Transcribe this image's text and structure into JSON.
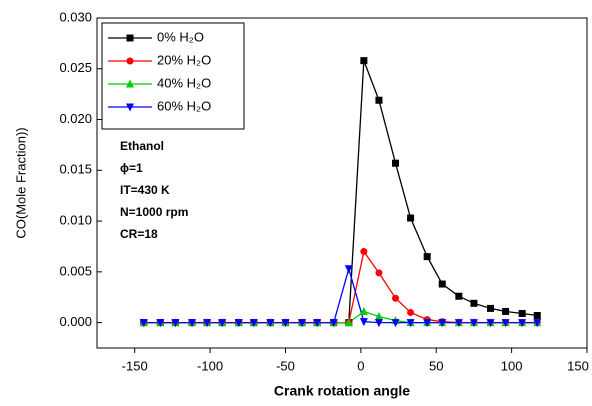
{
  "chart_data": {
    "type": "line",
    "x_label": "Crank  rotation  angle",
    "y_label": "CO(Mole Fraction))",
    "annotations": [
      "Ethanol",
      "ϕ=1",
      "IT=430 K",
      "N=1000 rpm",
      "CR=18"
    ],
    "x": [
      -144,
      -133,
      -123,
      -112,
      -102,
      -92,
      -81,
      -71,
      -60,
      -50,
      -39,
      -29,
      -18,
      -8,
      2,
      12,
      23,
      33,
      44,
      54,
      65,
      75,
      86,
      96,
      107,
      117
    ],
    "series": [
      {
        "name": "0% H₂O",
        "color": "#000000",
        "marker": "square",
        "values": [
          0,
          0,
          0,
          0,
          0,
          0,
          0,
          0,
          0,
          0,
          0,
          0,
          0,
          0,
          0.0258,
          0.0219,
          0.0157,
          0.0103,
          0.0065,
          0.0038,
          0.0026,
          0.0019,
          0.0014,
          0.0011,
          0.0009,
          0.0007
        ]
      },
      {
        "name": "20% H₂O",
        "color": "#ff0000",
        "marker": "circle",
        "values": [
          0,
          0,
          0,
          0,
          0,
          0,
          0,
          0,
          0,
          0,
          0,
          0,
          0,
          0,
          0.007,
          0.0049,
          0.0024,
          0.001,
          0.0003,
          0.0001,
          0,
          0,
          0,
          0,
          0,
          0
        ]
      },
      {
        "name": "40% H₂O",
        "color": "#00cc00",
        "marker": "triangle-up",
        "values": [
          0,
          0,
          0,
          0,
          0,
          0,
          0,
          0,
          0,
          0,
          0,
          0,
          0,
          0,
          0.0011,
          0.0006,
          0.0002,
          0,
          0,
          0,
          0,
          0,
          0,
          0,
          0,
          0
        ]
      },
      {
        "name": "60% H₂O",
        "color": "#0000ff",
        "marker": "triangle-down",
        "values": [
          0,
          0,
          0,
          0,
          0,
          0,
          0,
          0,
          0,
          0,
          0,
          0,
          0,
          0.0053,
          0.0001,
          0,
          0,
          0,
          0,
          0,
          0,
          0,
          0,
          0,
          0,
          0
        ]
      }
    ],
    "xlim": [
      -175,
      150
    ],
    "xticks": [
      -150,
      -100,
      -50,
      0,
      50,
      100,
      150
    ],
    "ylim": [
      -0.0025,
      0.03
    ],
    "yticks": [
      {
        "value": 0,
        "label": "0.000"
      },
      {
        "value": 0.005,
        "label": "0.005"
      },
      {
        "value": 0.01,
        "label": "0.010"
      },
      {
        "value": 0.015,
        "label": "0.015"
      },
      {
        "value": 0.02,
        "label": "0.020"
      },
      {
        "value": 0.025,
        "label": "0.025"
      },
      {
        "value": 0.03,
        "label": "0.030"
      }
    ],
    "legend": "upper-left",
    "grid": false
  }
}
